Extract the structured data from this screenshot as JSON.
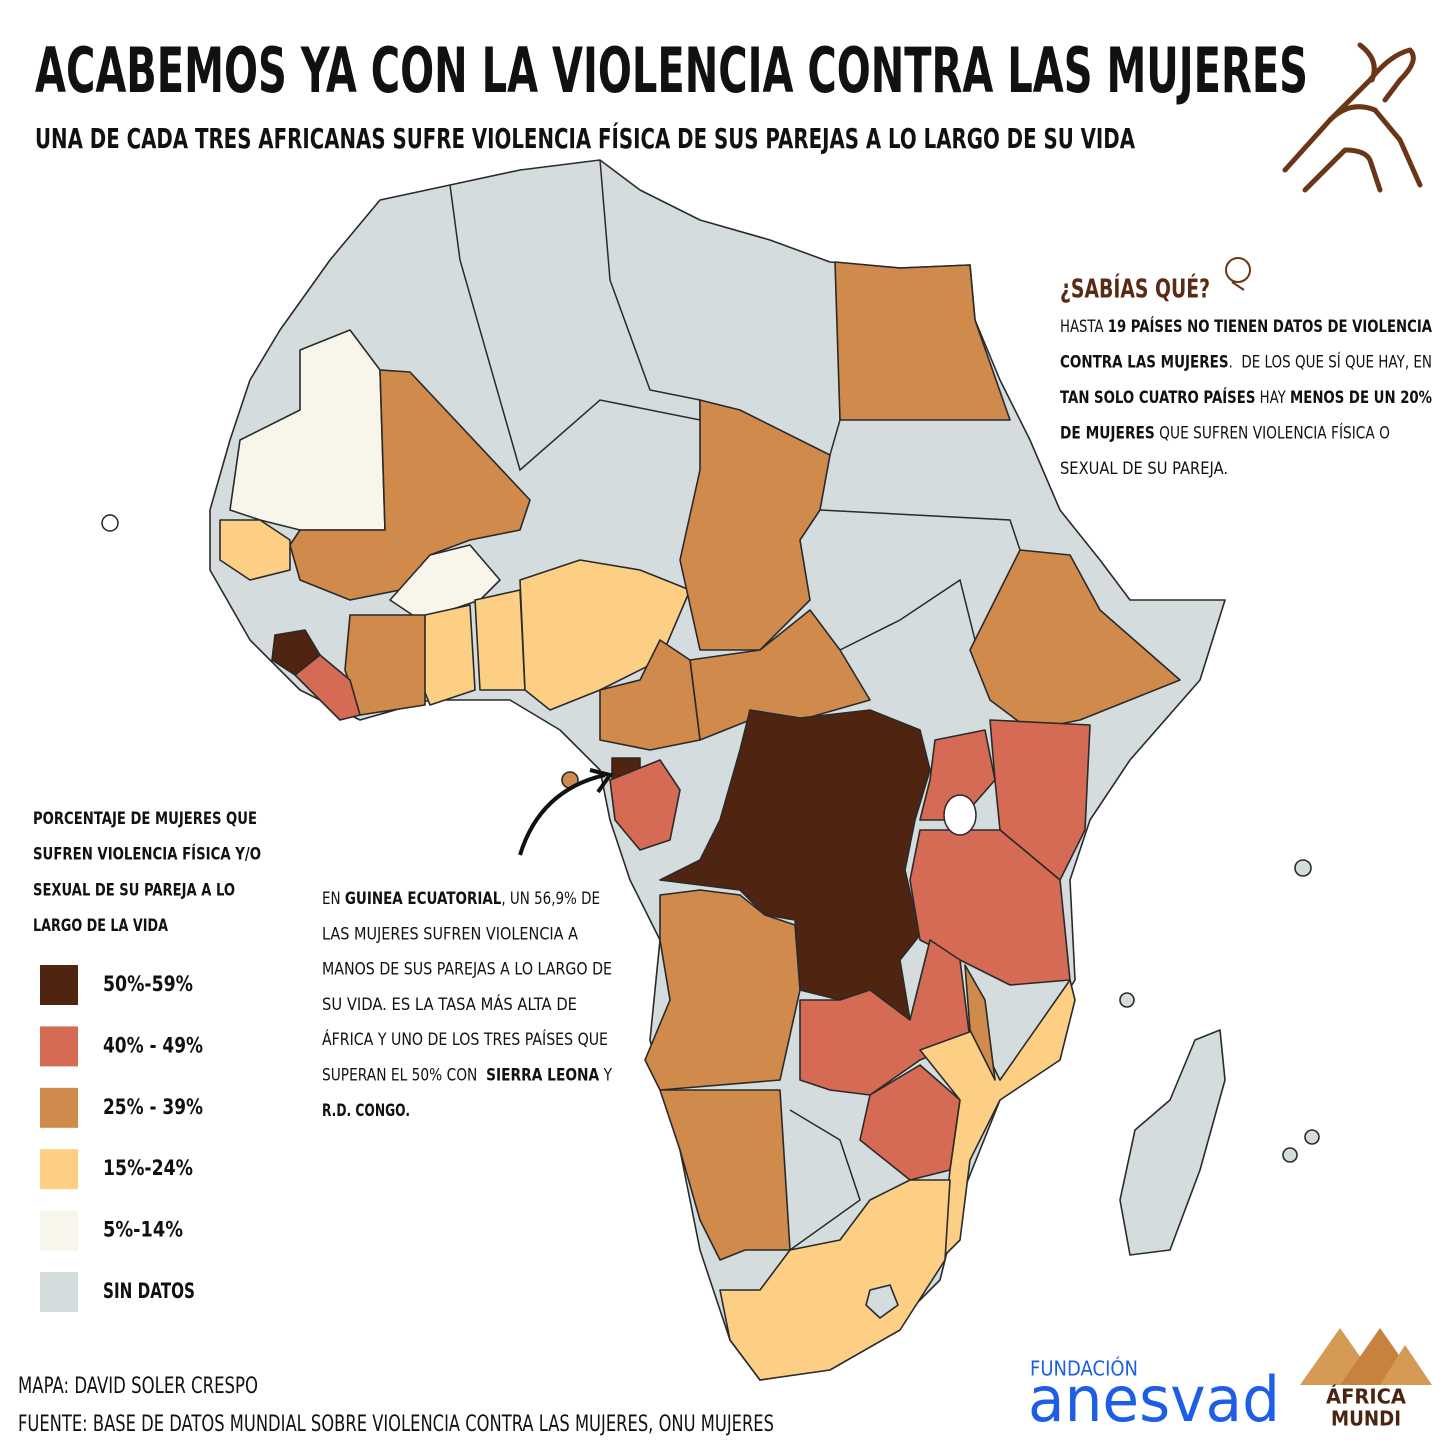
{
  "header": {
    "title": "ACABEMOS YA CON LA VIOLENCIA CONTRA LAS MUJERES",
    "subtitle": "UNA DE CADA TRES AFRICANAS SUFRE VIOLENCIA FÍSICA DE SUS PAREJAS A LO LARGO DE SU VIDA"
  },
  "fact_box": {
    "heading": "¿SABÍAS QUÉ?",
    "lines": [
      [
        {
          "text": "HASTA ",
          "bold": false
        },
        {
          "text": "19 PAÍSES NO TIENEN DATOS DE VIOLENCIA",
          "bold": true
        }
      ],
      [
        {
          "text": "CONTRA LAS MUJERES",
          "bold": true
        },
        {
          "text": ".  DE LOS QUE SÍ QUE HAY, EN",
          "bold": false
        }
      ],
      [
        {
          "text": "TAN SOLO CUATRO PAÍSES",
          "bold": true
        },
        {
          "text": " HAY ",
          "bold": false
        },
        {
          "text": "MENOS DE UN 20%",
          "bold": true
        }
      ],
      [
        {
          "text": "DE MUJERES",
          "bold": true
        },
        {
          "text": " QUE SUFREN VIOLENCIA FÍSICA O",
          "bold": false
        }
      ],
      [
        {
          "text": "SEXUAL DE SU PAREJA.",
          "bold": false
        }
      ]
    ]
  },
  "legend": {
    "title": [
      "PORCENTAJE DE MUJERES QUE",
      "SUFREN VIOLENCIA FÍSICA Y/O",
      "SEXUAL DE SU PAREJA A LO",
      "LARGO DE LA VIDA"
    ],
    "items": [
      {
        "label": "50%-59%",
        "color": "#4f2410"
      },
      {
        "label": "40% - 49%",
        "color": "#d66b55"
      },
      {
        "label": "25% - 39%",
        "color": "#cf8a4c"
      },
      {
        "label": "15%-24%",
        "color": "#fccf85"
      },
      {
        "label": "5%-14%",
        "color": "#f8f6ea"
      },
      {
        "label": "SIN DATOS",
        "color": "#d4dcdd"
      }
    ]
  },
  "annotation": {
    "lines": [
      [
        {
          "text": "EN ",
          "bold": false
        },
        {
          "text": "GUINEA ECUATORIAL",
          "bold": true
        },
        {
          "text": ", UN 56,9% DE",
          "bold": false
        }
      ],
      [
        {
          "text": "LAS MUJERES SUFREN VIOLENCIA A",
          "bold": false
        }
      ],
      [
        {
          "text": "MANOS DE SUS PAREJAS A LO LARGO DE",
          "bold": false
        }
      ],
      [
        {
          "text": "SU VIDA. ES LA TASA MÁS ALTA DE",
          "bold": false
        }
      ],
      [
        {
          "text": "ÁFRICA Y UNO DE LOS TRES PAÍSES QUE",
          "bold": false
        }
      ],
      [
        {
          "text": "SUPERAN EL 50% CON  ",
          "bold": false
        },
        {
          "text": "SIERRA LEONA",
          "bold": true
        },
        {
          "text": " Y",
          "bold": false
        }
      ],
      [
        {
          "text": "R.D. CONGO.",
          "bold": true
        }
      ]
    ]
  },
  "credits": {
    "map": "MAPA: DAVID SOLER CRESPO",
    "source": "FUENTE: BASE DE DATOS MUNDIAL SOBRE VIOLENCIA CONTRA LAS MUJERES, ONU MUJERES"
  },
  "logos": {
    "fundacion": "FUNDACIÓN",
    "anesvad": "anesvad",
    "africa": "ÁFRICA",
    "mundi": "MUNDI"
  }
}
